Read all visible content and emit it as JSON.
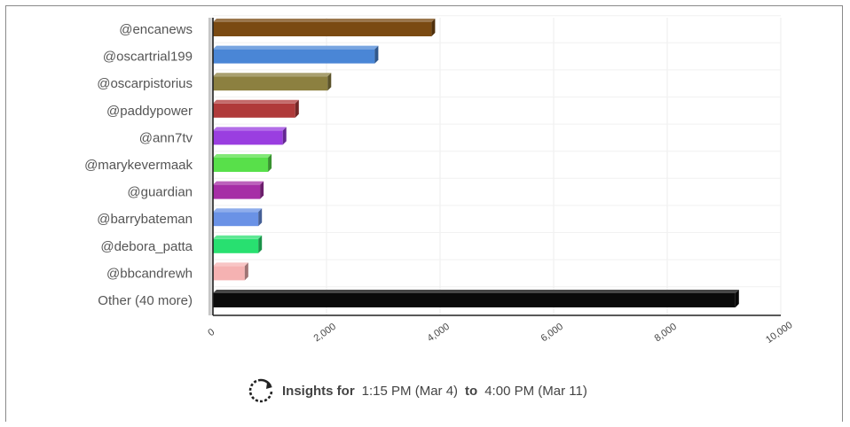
{
  "chart_data": {
    "type": "bar",
    "orientation": "horizontal",
    "categories": [
      "@encanews",
      "@oscartrial199",
      "@oscarpistorius",
      "@paddypower",
      "@ann7tv",
      "@marykevermaak",
      "@guardian",
      "@barrybateman",
      "@debora_patta",
      "@bbcandrewh",
      "Other (40 more)"
    ],
    "values": [
      3850,
      2850,
      2020,
      1450,
      1230,
      970,
      830,
      800,
      800,
      560,
      9200
    ],
    "colors": [
      "#7a4a12",
      "#4a86d6",
      "#8c8040",
      "#b03a3a",
      "#9a3ee0",
      "#58e04a",
      "#a62ea6",
      "#6a92e6",
      "#28e070",
      "#f5b2b2",
      "#0a0a0a"
    ],
    "xticks": [
      "0",
      "2,000",
      "4,000",
      "6,000",
      "8,000",
      "10,000"
    ],
    "xlim": [
      0,
      10000
    ],
    "grid": true
  },
  "footer": {
    "prefix": "Insights for",
    "start": "1:15 PM (Mar 4)",
    "connector": "to",
    "end": "4:00 PM (Mar 11)",
    "icon": "refresh-icon"
  }
}
